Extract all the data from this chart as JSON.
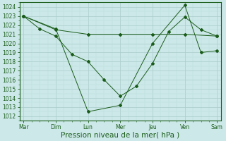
{
  "xlabel": "Pression niveau de la mer( hPa )",
  "days": [
    "Mar",
    "Dim",
    "Lun",
    "Mer",
    "Jeu",
    "Ven",
    "Sam"
  ],
  "background_color": "#cce8e8",
  "line_color": "#1a5c1a",
  "grid_color": "#aacccc",
  "minor_grid_color": "#bbdddd",
  "ylim": [
    1011.5,
    1024.5
  ],
  "yticks": [
    1012,
    1013,
    1014,
    1015,
    1016,
    1017,
    1018,
    1019,
    1020,
    1021,
    1022,
    1023,
    1024
  ],
  "series1_x": [
    0,
    2,
    4,
    6,
    8,
    10,
    12,
    14,
    16,
    18,
    20,
    22,
    24
  ],
  "series1_y": [
    1023.0,
    1021.6,
    1020.8,
    1018.8,
    1018.0,
    1016.0,
    1014.2,
    1015.3,
    1017.8,
    1021.3,
    1022.9,
    1021.5,
    1020.8
  ],
  "series2_x": [
    0,
    4,
    8,
    12,
    16,
    20,
    22,
    24
  ],
  "series2_y": [
    1023.0,
    1021.6,
    1012.5,
    1013.2,
    1020.0,
    1024.2,
    1019.0,
    1019.2
  ],
  "series3_x": [
    0,
    4,
    8,
    12,
    16,
    20,
    24
  ],
  "series3_y": [
    1023.0,
    1021.5,
    1021.0,
    1021.0,
    1021.0,
    1021.0,
    1020.8
  ],
  "tick_fontsize": 5.5,
  "label_fontsize": 7.5,
  "xlim": [
    -0.5,
    24.5
  ],
  "xtick_positions": [
    0,
    4,
    8,
    12,
    16,
    20,
    24
  ]
}
